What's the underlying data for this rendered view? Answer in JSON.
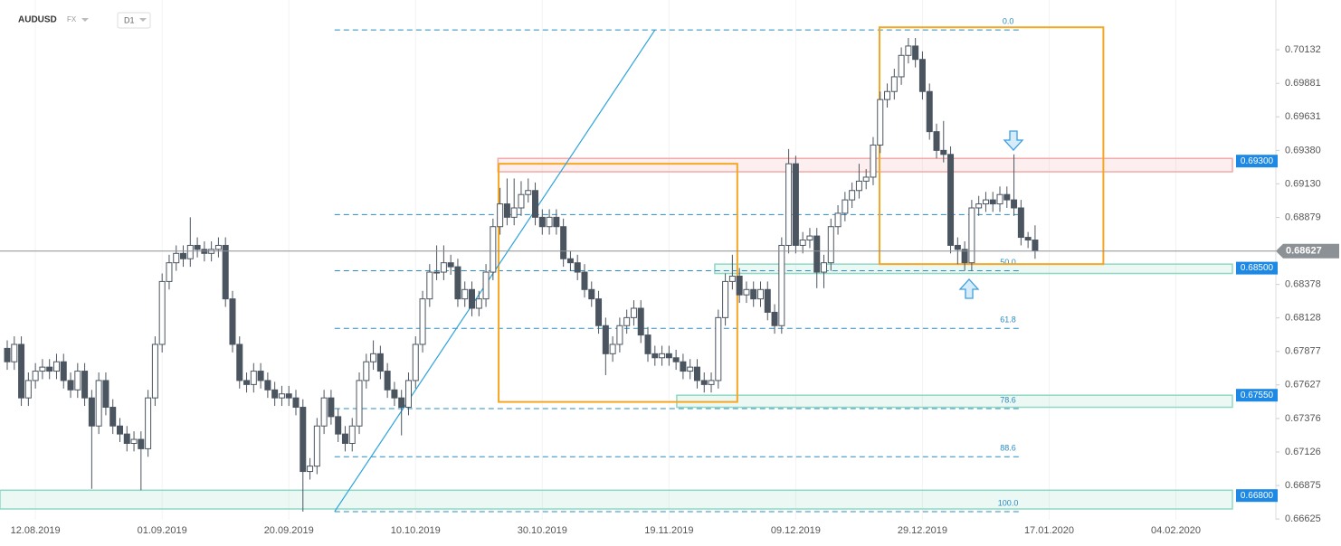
{
  "header": {
    "symbol": "AUDUSD",
    "market": "FX",
    "interval": "D1"
  },
  "chart_data": {
    "type": "candlestick",
    "x": [
      0,
      1,
      2,
      3,
      4,
      5,
      6,
      7,
      8,
      9,
      10,
      11,
      12,
      13,
      14,
      15,
      16,
      17,
      18,
      19,
      20,
      21,
      22,
      23,
      24,
      25,
      26,
      27,
      28,
      29,
      30,
      31,
      32,
      33,
      34,
      35,
      36,
      37,
      38,
      39,
      40,
      41,
      42,
      43,
      44,
      45,
      46,
      47,
      48,
      49,
      50,
      51,
      52,
      53,
      54,
      55,
      56,
      57,
      58,
      59,
      60,
      61,
      62,
      63,
      64,
      65,
      66,
      67,
      68,
      69,
      70,
      71,
      72,
      73,
      74,
      75,
      76,
      77,
      78,
      79,
      80,
      81,
      82,
      83,
      84,
      85,
      86,
      87,
      88,
      89,
      90,
      91,
      92,
      93,
      94,
      95,
      96,
      97,
      98,
      99,
      100,
      101,
      102,
      103,
      104,
      105,
      106,
      107,
      108,
      109,
      110,
      111,
      112,
      113,
      114,
      115,
      116,
      117,
      118,
      119,
      120,
      121,
      122,
      123,
      124,
      125,
      126,
      127,
      128,
      129,
      130,
      131,
      132,
      133,
      134,
      135,
      136,
      137,
      138,
      139,
      140,
      141,
      142,
      143,
      144,
      145,
      146
    ],
    "candles": {
      "open": [
        0.679,
        0.678,
        0.6793,
        0.6753,
        0.6766,
        0.6773,
        0.6776,
        0.6773,
        0.678,
        0.6766,
        0.6759,
        0.6773,
        0.6753,
        0.6732,
        0.6766,
        0.6746,
        0.6732,
        0.6726,
        0.6719,
        0.6722,
        0.6715,
        0.6753,
        0.6793,
        0.684,
        0.6854,
        0.6861,
        0.6857,
        0.6867,
        0.6864,
        0.6861,
        0.6864,
        0.6867,
        0.6827,
        0.6793,
        0.6766,
        0.6763,
        0.6773,
        0.6766,
        0.6759,
        0.6753,
        0.6756,
        0.6753,
        0.6746,
        0.6698,
        0.6702,
        0.6732,
        0.6753,
        0.6739,
        0.6726,
        0.6719,
        0.6732,
        0.6766,
        0.678,
        0.6786,
        0.6773,
        0.6759,
        0.6753,
        0.6746,
        0.6766,
        0.6793,
        0.6827,
        0.6847,
        0.6847,
        0.6854,
        0.6851,
        0.6827,
        0.6834,
        0.682,
        0.6827,
        0.6847,
        0.6881,
        0.6898,
        0.6888,
        0.6895,
        0.6905,
        0.6908,
        0.6888,
        0.6881,
        0.6888,
        0.6881,
        0.6857,
        0.6854,
        0.6847,
        0.6834,
        0.6827,
        0.6807,
        0.6786,
        0.6793,
        0.6807,
        0.6813,
        0.682,
        0.68,
        0.6786,
        0.6783,
        0.6786,
        0.6783,
        0.678,
        0.6773,
        0.6776,
        0.6766,
        0.6763,
        0.6766,
        0.6813,
        0.684,
        0.6844,
        0.683,
        0.6834,
        0.6827,
        0.6834,
        0.6817,
        0.6807,
        0.6867,
        0.6928,
        0.6867,
        0.6871,
        0.6874,
        0.6847,
        0.6854,
        0.6881,
        0.6891,
        0.6901,
        0.6908,
        0.6915,
        0.6918,
        0.6942,
        0.6976,
        0.6982,
        0.6993,
        0.7009,
        0.7016,
        0.7006,
        0.6982,
        0.6952,
        0.6938,
        0.6935,
        0.6867,
        0.6864,
        0.6854,
        0.6895,
        0.6898,
        0.6901,
        0.6898,
        0.6905,
        0.6901,
        0.6895,
        0.6873,
        0.6871
      ],
      "high": [
        0.6796,
        0.6799,
        0.6799,
        0.6772,
        0.6779,
        0.6782,
        0.6782,
        0.6786,
        0.6786,
        0.6772,
        0.6779,
        0.6779,
        0.6759,
        0.6772,
        0.6772,
        0.6752,
        0.6738,
        0.6732,
        0.6728,
        0.6728,
        0.6759,
        0.6799,
        0.6846,
        0.686,
        0.6867,
        0.6867,
        0.6888,
        0.6873,
        0.687,
        0.687,
        0.6873,
        0.6873,
        0.6833,
        0.6799,
        0.6772,
        0.6779,
        0.6779,
        0.6772,
        0.6765,
        0.6762,
        0.6762,
        0.6759,
        0.6752,
        0.6708,
        0.6738,
        0.6759,
        0.6759,
        0.6745,
        0.6732,
        0.6738,
        0.6772,
        0.6786,
        0.6796,
        0.6792,
        0.6779,
        0.6765,
        0.6759,
        0.6772,
        0.6799,
        0.6833,
        0.6853,
        0.6867,
        0.6867,
        0.686,
        0.6857,
        0.684,
        0.684,
        0.6833,
        0.6853,
        0.6887,
        0.691,
        0.6917,
        0.6917,
        0.6915,
        0.6917,
        0.6914,
        0.6894,
        0.6894,
        0.6894,
        0.6887,
        0.6863,
        0.686,
        0.6853,
        0.684,
        0.6833,
        0.6813,
        0.6799,
        0.6813,
        0.6819,
        0.6826,
        0.6826,
        0.6806,
        0.6792,
        0.6792,
        0.6792,
        0.6789,
        0.6786,
        0.6782,
        0.6782,
        0.6772,
        0.6772,
        0.6819,
        0.6846,
        0.686,
        0.685,
        0.684,
        0.684,
        0.684,
        0.684,
        0.6823,
        0.6873,
        0.6939,
        0.6934,
        0.6877,
        0.688,
        0.688,
        0.686,
        0.6887,
        0.6897,
        0.6907,
        0.6914,
        0.6928,
        0.6924,
        0.6948,
        0.6982,
        0.6988,
        0.6999,
        0.7015,
        0.7022,
        0.7022,
        0.7012,
        0.6988,
        0.6958,
        0.696,
        0.6941,
        0.6873,
        0.687,
        0.6901,
        0.6904,
        0.6907,
        0.6907,
        0.6911,
        0.6911,
        0.6935,
        0.6901,
        0.6877,
        0.6882
      ],
      "low": [
        0.6774,
        0.6774,
        0.6747,
        0.6747,
        0.676,
        0.6767,
        0.6767,
        0.6767,
        0.676,
        0.6753,
        0.6753,
        0.6747,
        0.6685,
        0.6726,
        0.674,
        0.6726,
        0.672,
        0.6713,
        0.6713,
        0.6684,
        0.6709,
        0.6747,
        0.6787,
        0.6834,
        0.6848,
        0.6851,
        0.6851,
        0.6858,
        0.6855,
        0.6855,
        0.6858,
        0.6821,
        0.6787,
        0.676,
        0.6757,
        0.6757,
        0.676,
        0.6753,
        0.6747,
        0.6747,
        0.6747,
        0.674,
        0.6668,
        0.6692,
        0.6696,
        0.6726,
        0.6733,
        0.672,
        0.6713,
        0.6713,
        0.6726,
        0.676,
        0.6774,
        0.6767,
        0.6753,
        0.6747,
        0.6725,
        0.674,
        0.676,
        0.6787,
        0.6821,
        0.6841,
        0.6841,
        0.6845,
        0.6821,
        0.6821,
        0.6814,
        0.6814,
        0.6821,
        0.6841,
        0.6875,
        0.6882,
        0.6882,
        0.6889,
        0.6899,
        0.6882,
        0.6875,
        0.6875,
        0.6875,
        0.6851,
        0.6848,
        0.6841,
        0.6828,
        0.6821,
        0.6801,
        0.677,
        0.678,
        0.6787,
        0.6801,
        0.6807,
        0.6794,
        0.678,
        0.6777,
        0.6777,
        0.6777,
        0.6774,
        0.6767,
        0.6767,
        0.676,
        0.6757,
        0.6757,
        0.676,
        0.6807,
        0.6834,
        0.6824,
        0.6824,
        0.6821,
        0.6821,
        0.6811,
        0.6801,
        0.6801,
        0.6861,
        0.6861,
        0.6861,
        0.6865,
        0.6835,
        0.6835,
        0.6848,
        0.6875,
        0.6885,
        0.6895,
        0.6902,
        0.6909,
        0.6912,
        0.6936,
        0.697,
        0.6976,
        0.6987,
        0.7003,
        0.7,
        0.6976,
        0.6946,
        0.6932,
        0.6929,
        0.6861,
        0.6853,
        0.6848,
        0.6848,
        0.6889,
        0.6892,
        0.6892,
        0.6892,
        0.6895,
        0.6889,
        0.6867,
        0.6865,
        0.6857
      ],
      "close": [
        0.678,
        0.6793,
        0.6753,
        0.6766,
        0.6773,
        0.6776,
        0.6773,
        0.678,
        0.6766,
        0.6759,
        0.6773,
        0.6753,
        0.6732,
        0.6766,
        0.6746,
        0.6732,
        0.6726,
        0.6719,
        0.6722,
        0.6715,
        0.6753,
        0.6793,
        0.684,
        0.6854,
        0.6861,
        0.6857,
        0.6867,
        0.6864,
        0.6861,
        0.6864,
        0.6867,
        0.6827,
        0.6793,
        0.6766,
        0.6763,
        0.6773,
        0.6766,
        0.6759,
        0.6753,
        0.6756,
        0.6753,
        0.6746,
        0.6698,
        0.6702,
        0.6732,
        0.6753,
        0.6739,
        0.6726,
        0.6719,
        0.6732,
        0.6766,
        0.678,
        0.6786,
        0.6773,
        0.6759,
        0.6753,
        0.6746,
        0.6766,
        0.6793,
        0.6827,
        0.6847,
        0.6847,
        0.6854,
        0.6851,
        0.6827,
        0.6834,
        0.682,
        0.6827,
        0.6847,
        0.6881,
        0.6898,
        0.6888,
        0.6895,
        0.6905,
        0.6908,
        0.6888,
        0.6881,
        0.6888,
        0.6881,
        0.6857,
        0.6854,
        0.6847,
        0.6834,
        0.6827,
        0.6807,
        0.6786,
        0.6793,
        0.6807,
        0.6813,
        0.682,
        0.68,
        0.6786,
        0.6783,
        0.6786,
        0.6783,
        0.678,
        0.6773,
        0.6776,
        0.6766,
        0.6763,
        0.6766,
        0.6813,
        0.684,
        0.6844,
        0.683,
        0.6834,
        0.6827,
        0.6834,
        0.6817,
        0.6807,
        0.6867,
        0.6928,
        0.6867,
        0.6871,
        0.6874,
        0.6847,
        0.6854,
        0.6881,
        0.6891,
        0.6901,
        0.6908,
        0.6915,
        0.6918,
        0.6942,
        0.6976,
        0.6982,
        0.6993,
        0.7009,
        0.7016,
        0.7006,
        0.6982,
        0.6952,
        0.6938,
        0.6935,
        0.6867,
        0.6864,
        0.6854,
        0.6895,
        0.6898,
        0.6901,
        0.6898,
        0.6905,
        0.6901,
        0.6895,
        0.6873,
        0.6871,
        0.6863
      ]
    },
    "colors": {
      "up": "#ffffff",
      "down": "#4b5560",
      "outline": "#4b5560"
    },
    "xlim": [
      -1.03,
      180.2
    ],
    "xticks": [
      {
        "value": 4,
        "label": "12.08.2019"
      },
      {
        "value": 22,
        "label": "01.09.2019"
      },
      {
        "value": 40,
        "label": "20.09.2019"
      },
      {
        "value": 58,
        "label": "10.10.2019"
      },
      {
        "value": 76,
        "label": "30.10.2019"
      },
      {
        "value": 94,
        "label": "19.11.2019"
      },
      {
        "value": 112,
        "label": "09.12.2019"
      },
      {
        "value": 130,
        "label": "29.12.2019"
      },
      {
        "value": 148,
        "label": "17.01.2020"
      },
      {
        "value": 166,
        "label": "04.02.2020"
      }
    ],
    "ylim": [
      0.66619,
      0.70504
    ],
    "yticks": [
      0.70132,
      0.69881,
      0.69631,
      {
        "value": 0.6938,
        "label": "0.69380"
      },
      {
        "value": 0.6913,
        "label": "0.69130"
      },
      0.68879,
      0.68378,
      0.68128,
      0.67877,
      0.67627,
      0.67376,
      0.67126,
      0.66875,
      0.66625
    ],
    "current_price": {
      "value": 0.68627,
      "color": "#8c9196"
    },
    "levels": [
      {
        "value": 0.693,
        "label": "0.69300",
        "band": [
          0.6922,
          0.6932
        ],
        "x_start": 69.7,
        "color": "#f2a9a9"
      },
      {
        "value": 0.685,
        "label": "0.68500",
        "band": [
          0.6846,
          0.6853
        ],
        "x_start": 100.5,
        "color": "#8fd8c4"
      },
      {
        "value": 0.6755,
        "label": "0.67550",
        "band": [
          0.6746,
          0.6755
        ],
        "x_start": 95.1,
        "color": "#8fd8c4"
      },
      {
        "value": 0.668,
        "label": "0.66800",
        "band": [
          0.667,
          0.6684
        ],
        "x_start": -1.03,
        "color": "#8fd8c4"
      }
    ],
    "fibonacci": {
      "x_range": [
        46.5,
        144
      ],
      "color": "#2a8cc0",
      "levels": [
        {
          "value": 0.7028,
          "label": "0.0"
        },
        {
          "value": 0.689,
          "label": null
        },
        {
          "value": 0.6848,
          "label": "50.0"
        },
        {
          "value": 0.6805,
          "label": "61.8"
        },
        {
          "value": 0.6745,
          "label": "78.6"
        },
        {
          "value": 0.6709,
          "label": "88.6"
        },
        {
          "value": 0.6668,
          "label": "100.0"
        }
      ]
    },
    "trend_line": {
      "x": [
        46.5,
        92
      ],
      "y": [
        0.6668,
        0.7028
      ],
      "color": "#2aa3dc"
    },
    "boxes": [
      {
        "x": [
          69.8,
          103.7
        ],
        "y": [
          0.675,
          0.6928
        ],
        "color": "#f5a623"
      },
      {
        "x": [
          123.9,
          155.7
        ],
        "y": [
          0.6853,
          0.703
        ],
        "color": "#f5a623"
      }
    ]
  }
}
